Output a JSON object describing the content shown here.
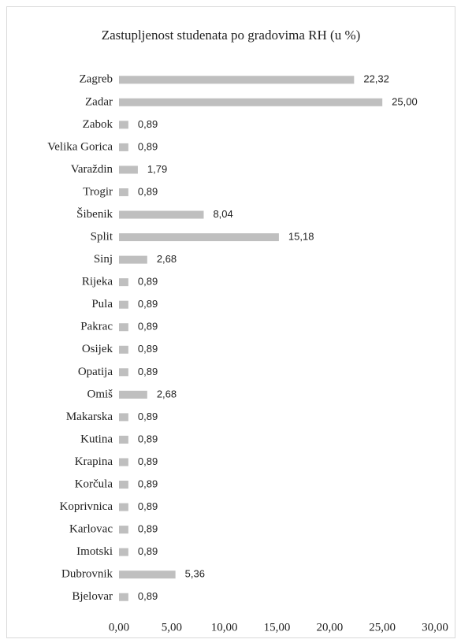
{
  "chart_data": {
    "type": "barh",
    "title": "Zastupljenost studenata po gradovima RH (u %)",
    "categories": [
      "Zagreb",
      "Zadar",
      "Zabok",
      "Velika Gorica",
      "Varaždin",
      "Trogir",
      "Šibenik",
      "Split",
      "Sinj",
      "Rijeka",
      "Pula",
      "Pakrac",
      "Osijek",
      "Opatija",
      "Omiš",
      "Makarska",
      "Kutina",
      "Krapina",
      "Korčula",
      "Koprivnica",
      "Karlovac",
      "Imotski",
      "Dubrovnik",
      "Bjelovar"
    ],
    "values": [
      22.32,
      25.0,
      0.89,
      0.89,
      1.79,
      0.89,
      8.04,
      15.18,
      2.68,
      0.89,
      0.89,
      0.89,
      0.89,
      0.89,
      2.68,
      0.89,
      0.89,
      0.89,
      0.89,
      0.89,
      0.89,
      0.89,
      5.36,
      0.89
    ],
    "value_labels": [
      "22,32",
      "25,00",
      "0,89",
      "0,89",
      "1,79",
      "0,89",
      "8,04",
      "15,18",
      "2,68",
      "0,89",
      "0,89",
      "0,89",
      "0,89",
      "0,89",
      "2,68",
      "0,89",
      "0,89",
      "0,89",
      "0,89",
      "0,89",
      "0,89",
      "0,89",
      "5,36",
      "0,89"
    ],
    "color": "#bfbfbf",
    "xlim": [
      0,
      30
    ],
    "xticks": [
      {
        "value": 0,
        "label": "0,00"
      },
      {
        "value": 5,
        "label": "5,00"
      },
      {
        "value": 10,
        "label": "10,00"
      },
      {
        "value": 15,
        "label": "15,00"
      },
      {
        "value": 20,
        "label": "20,00"
      },
      {
        "value": 25,
        "label": "25,00"
      },
      {
        "value": 30,
        "label": "30,00"
      }
    ],
    "grid": false
  }
}
